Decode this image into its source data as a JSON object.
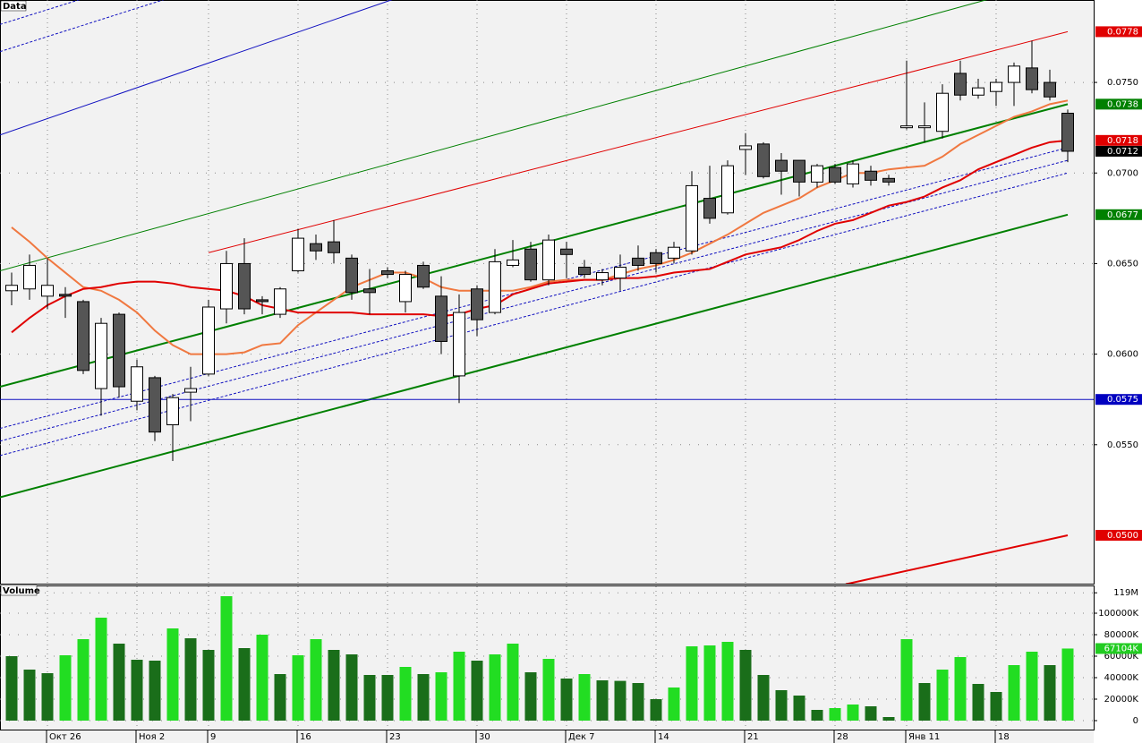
{
  "chart_data": [
    {
      "type": "candlestick",
      "title": "Data",
      "open": [
        0.0635,
        0.0636,
        0.0632,
        0.0633,
        0.0629,
        0.0581,
        0.0622,
        0.0574,
        0.0587,
        0.0561,
        0.0579,
        0.0589,
        0.0625,
        0.065,
        0.063,
        0.0622,
        0.0646,
        0.0661,
        0.0662,
        0.0653,
        0.0636,
        0.0646,
        0.0629,
        0.0649,
        0.0632,
        0.0588,
        0.0636,
        0.0623,
        0.0649,
        0.0658,
        0.0641,
        0.0658,
        0.0648,
        0.0641,
        0.0642,
        0.0653,
        0.0656,
        0.0653,
        0.0657,
        0.0686,
        0.0678,
        0.0713,
        0.0716,
        0.0707,
        0.0707,
        0.0695,
        0.0703,
        0.0694,
        0.0701,
        0.0697,
        0.0725,
        0.0725,
        0.0723,
        0.0755,
        0.0743,
        0.0745,
        0.075,
        0.0758,
        0.075,
        0.0733
      ],
      "high": [
        0.0645,
        0.0655,
        0.0653,
        0.0637,
        0.063,
        0.062,
        0.0623,
        0.0597,
        0.0588,
        0.0578,
        0.0593,
        0.063,
        0.0657,
        0.0664,
        0.0632,
        0.0637,
        0.0669,
        0.0666,
        0.0674,
        0.0655,
        0.0647,
        0.0648,
        0.0646,
        0.0651,
        0.0643,
        0.0633,
        0.0638,
        0.0658,
        0.0663,
        0.0662,
        0.0666,
        0.0662,
        0.0652,
        0.0647,
        0.0655,
        0.066,
        0.0658,
        0.0662,
        0.0701,
        0.0704,
        0.0707,
        0.0722,
        0.0717,
        0.0711,
        0.0707,
        0.0705,
        0.0705,
        0.0707,
        0.0704,
        0.0699,
        0.0762,
        0.0739,
        0.0749,
        0.0762,
        0.0752,
        0.0752,
        0.0761,
        0.0773,
        0.0757,
        0.0735
      ],
      "low": [
        0.0627,
        0.063,
        0.0625,
        0.062,
        0.0589,
        0.0566,
        0.0576,
        0.0569,
        0.0552,
        0.0541,
        0.0563,
        0.0588,
        0.0617,
        0.0622,
        0.0622,
        0.062,
        0.0645,
        0.0652,
        0.065,
        0.063,
        0.0622,
        0.0642,
        0.0623,
        0.0636,
        0.06,
        0.0573,
        0.061,
        0.0622,
        0.0648,
        0.064,
        0.0638,
        0.0642,
        0.0642,
        0.0638,
        0.0635,
        0.0646,
        0.0645,
        0.065,
        0.0655,
        0.0672,
        0.0677,
        0.0699,
        0.0697,
        0.0688,
        0.0687,
        0.0692,
        0.0694,
        0.0692,
        0.0693,
        0.0693,
        0.0724,
        0.0717,
        0.0719,
        0.074,
        0.0741,
        0.0737,
        0.0737,
        0.0744,
        0.074,
        0.0706
      ],
      "close": [
        0.0638,
        0.0649,
        0.0638,
        0.0632,
        0.0591,
        0.0617,
        0.0582,
        0.0593,
        0.0557,
        0.0576,
        0.0581,
        0.0626,
        0.065,
        0.0625,
        0.0629,
        0.0636,
        0.0664,
        0.0657,
        0.0656,
        0.0634,
        0.0634,
        0.0644,
        0.0644,
        0.0637,
        0.0607,
        0.0623,
        0.0619,
        0.0651,
        0.0652,
        0.0641,
        0.0663,
        0.0655,
        0.0644,
        0.0645,
        0.0648,
        0.0649,
        0.065,
        0.0659,
        0.0693,
        0.0675,
        0.0704,
        0.0715,
        0.0698,
        0.0701,
        0.0695,
        0.0704,
        0.0695,
        0.0705,
        0.0696,
        0.0695,
        0.0726,
        0.0726,
        0.0744,
        0.0743,
        0.0747,
        0.075,
        0.0759,
        0.0746,
        0.0742,
        0.0712
      ],
      "up_color": "#ffffff",
      "down_color": "#555555",
      "series": [
        {
          "color": "#f07840",
          "values": [
            0.067,
            0.0662,
            0.0653,
            0.0645,
            0.0637,
            0.0635,
            0.063,
            0.0623,
            0.0613,
            0.0605,
            0.06,
            0.06,
            0.06,
            0.0601,
            0.0605,
            0.0606,
            0.0616,
            0.0623,
            0.063,
            0.0637,
            0.0641,
            0.0645,
            0.0645,
            0.0642,
            0.0637,
            0.0635,
            0.0635,
            0.0635,
            0.0635,
            0.0637,
            0.064,
            0.0641,
            0.0641,
            0.0641,
            0.0644,
            0.0647,
            0.0649,
            0.0652,
            0.0656,
            0.0661,
            0.0666,
            0.0672,
            0.0678,
            0.0682,
            0.0686,
            0.0692,
            0.0696,
            0.07,
            0.07,
            0.0702,
            0.0703,
            0.0704,
            0.0709,
            0.0716,
            0.0721,
            0.0726,
            0.0731,
            0.0734,
            0.0738,
            0.074
          ]
        },
        {
          "color": "#e00000",
          "values": [
            0.0612,
            0.062,
            0.0627,
            0.0632,
            0.0636,
            0.0637,
            0.0639,
            0.064,
            0.064,
            0.0639,
            0.0637,
            0.0636,
            0.0635,
            0.0632,
            0.0627,
            0.0625,
            0.0623,
            0.0623,
            0.0623,
            0.0623,
            0.0622,
            0.0622,
            0.0622,
            0.0622,
            0.0621,
            0.0622,
            0.0625,
            0.0627,
            0.0633,
            0.0636,
            0.0639,
            0.064,
            0.0641,
            0.0641,
            0.0642,
            0.0642,
            0.0643,
            0.0645,
            0.0646,
            0.0647,
            0.0651,
            0.0655,
            0.0657,
            0.0659,
            0.0663,
            0.0668,
            0.0672,
            0.0674,
            0.0678,
            0.0682,
            0.0684,
            0.0687,
            0.0692,
            0.0696,
            0.0702,
            0.0706,
            0.071,
            0.0714,
            0.0717,
            0.0718
          ]
        }
      ],
      "trend_lines": [
        {
          "color": "#1010c0",
          "width": 1,
          "dash": false,
          "x": [
            -0.65,
            21.35
          ],
          "values": [
            0.0721,
            0.0796
          ]
        },
        {
          "color": "#1010c0",
          "width": 1,
          "dash": true,
          "x": [
            -0.65,
            8.6
          ],
          "values": [
            0.0767,
            0.0796
          ]
        },
        {
          "color": "#1010c0",
          "width": 1,
          "dash": true,
          "x": [
            -0.65,
            3.9
          ],
          "values": [
            0.0782,
            0.0796
          ]
        },
        {
          "color": "#008000",
          "width": 1,
          "dash": false,
          "x": [
            -0.65,
            54.6
          ],
          "values": [
            0.0646,
            0.0796
          ]
        },
        {
          "color": "#e00000",
          "width": 1,
          "dash": false,
          "x": [
            11,
            59
          ],
          "values": [
            0.0656,
            0.0778
          ]
        },
        {
          "color": "#008000",
          "width": 2,
          "dash": false,
          "x": [
            -0.65,
            59
          ],
          "values": [
            0.0582,
            0.0738
          ]
        },
        {
          "color": "#008000",
          "width": 2,
          "dash": false,
          "x": [
            -0.65,
            59
          ],
          "values": [
            0.0521,
            0.0677
          ]
        },
        {
          "color": "#e00000",
          "width": 2,
          "dash": false,
          "x": [
            46.6,
            59
          ],
          "values": [
            0.0473,
            0.05
          ]
        },
        {
          "color": "#1010c0",
          "width": 1,
          "dash": false,
          "x": [
            -0.65,
            60.45
          ],
          "values": [
            0.0575,
            0.0575
          ]
        },
        {
          "color": "#1010c0",
          "width": 1,
          "dash": true,
          "x": [
            -0.65,
            59
          ],
          "values": [
            0.0559,
            0.0714
          ]
        },
        {
          "color": "#1010c0",
          "width": 1,
          "dash": true,
          "x": [
            -0.65,
            59
          ],
          "values": [
            0.0552,
            0.0707
          ]
        },
        {
          "color": "#1010c0",
          "width": 1,
          "dash": true,
          "x": [
            -0.65,
            59
          ],
          "values": [
            0.0544,
            0.07
          ]
        }
      ],
      "ylim": [
        0.04733,
        0.07955
      ],
      "yticks": [
        {
          "value": 0.055,
          "label": "0.0550"
        },
        {
          "value": 0.06,
          "label": "0.0600"
        },
        {
          "value": 0.065,
          "label": "0.0650"
        },
        {
          "value": 0.07,
          "label": "0.0700"
        },
        {
          "value": 0.075,
          "label": "0.0750"
        }
      ],
      "markers": [
        {
          "value": 0.0778,
          "label": "0.0778",
          "color": "#e00000"
        },
        {
          "value": 0.0738,
          "label": "0.0738",
          "color": "#008000"
        },
        {
          "value": 0.0718,
          "label": "0.0718",
          "color": "#e00000"
        },
        {
          "value": 0.0712,
          "label": "0.0712",
          "color": "#000000"
        },
        {
          "value": 0.0677,
          "label": "0.0677",
          "color": "#008000"
        },
        {
          "value": 0.0575,
          "label": "0.0575",
          "color": "#0000c0"
        },
        {
          "value": 0.05,
          "label": "0.0500",
          "color": "#e00000"
        }
      ],
      "grid": true
    },
    {
      "type": "bar",
      "title": "Volume",
      "categories": [
        null,
        null,
        "Окт 26",
        null,
        null,
        null,
        null,
        "Ноя 2",
        null,
        null,
        null,
        "9",
        null,
        null,
        null,
        null,
        "16",
        null,
        null,
        null,
        null,
        "23",
        null,
        null,
        null,
        null,
        "30",
        null,
        null,
        null,
        null,
        "Дек 7",
        null,
        null,
        null,
        null,
        "14",
        null,
        null,
        null,
        null,
        "21",
        null,
        null,
        null,
        null,
        "28",
        null,
        null,
        null,
        "Янв 11",
        null,
        null,
        null,
        null,
        "18",
        null,
        null,
        null,
        null
      ],
      "values": [
        60000,
        47500,
        44167,
        60833,
        75833,
        95833,
        71667,
        56667,
        55833,
        85833,
        76667,
        65833,
        115833,
        67500,
        80000,
        43333,
        60833,
        75833,
        65833,
        61667,
        42500,
        42500,
        50000,
        43333,
        45000,
        64167,
        55833,
        61667,
        71667,
        45000,
        57500,
        39167,
        43333,
        37500,
        37000,
        35000,
        20000,
        30833,
        69167,
        70000,
        73333,
        65833,
        42500,
        28333,
        23333,
        10000,
        11667,
        15000,
        13333,
        3333,
        75833,
        35000,
        47500,
        59167,
        34167,
        26667,
        51667,
        64167,
        51667,
        67104
      ],
      "up_color": "#22dd22",
      "down_color": "#1a6e1a",
      "ylim": [
        -8333,
        125000
      ],
      "yticks": [
        0,
        {
          "value": 20000,
          "label": "20000K"
        },
        {
          "value": 40000,
          "label": "40000K"
        },
        {
          "value": 60000,
          "label": "60000K"
        },
        {
          "value": 80000,
          "label": "80000K"
        },
        {
          "value": 100000,
          "label": "100000K"
        },
        {
          "value": 119000,
          "label": "119M"
        }
      ],
      "markers": [
        {
          "value": 67104,
          "label": "67104K",
          "color": "#22cc22"
        }
      ],
      "grid": true
    }
  ]
}
